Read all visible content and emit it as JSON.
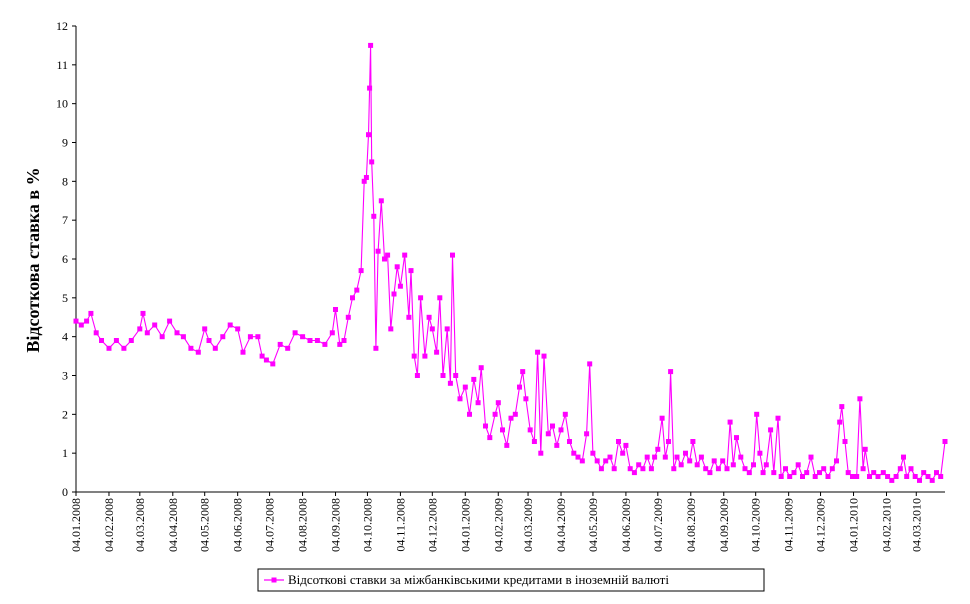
{
  "chart_data": {
    "type": "line",
    "title": "",
    "xlabel": "",
    "ylabel": "Відсоткова ставка в %",
    "ylim": [
      0,
      12
    ],
    "yticks": [
      "0",
      "1",
      "2",
      "3",
      "4",
      "5",
      "6",
      "7",
      "8",
      "9",
      "10",
      "11",
      "12"
    ],
    "grid": false,
    "legend_position": "bottom-center",
    "x_start": "2008-01-04",
    "x_end": "2010-03-31",
    "xticks": [
      "04.01.2008",
      "04.02.2008",
      "04.03.2008",
      "04.04.2008",
      "04.05.2008",
      "04.06.2008",
      "04.07.2008",
      "04.08.2008",
      "04.09.2008",
      "04.10.2008",
      "04.11.2008",
      "04.12.2008",
      "04.01.2009",
      "04.02.2009",
      "04.03.2009",
      "04.04.2009",
      "04.05.2009",
      "04.06.2009",
      "04.07.2009",
      "04.08.2009",
      "04.09.2009",
      "04.10.2009",
      "04.11.2009",
      "04.12.2009",
      "04.01.2010",
      "04.02.2010",
      "04.03.2010"
    ],
    "series": [
      {
        "name": "Відсоткові ставки за міжбанківськими кредитами в іноземній валюті",
        "color": "#FF00FF",
        "marker": "square",
        "points": [
          [
            "2008-01-04",
            4.4
          ],
          [
            "2008-01-09",
            4.3
          ],
          [
            "2008-01-14",
            4.4
          ],
          [
            "2008-01-18",
            4.6
          ],
          [
            "2008-01-23",
            4.1
          ],
          [
            "2008-01-28",
            3.9
          ],
          [
            "2008-02-04",
            3.7
          ],
          [
            "2008-02-11",
            3.9
          ],
          [
            "2008-02-18",
            3.7
          ],
          [
            "2008-02-25",
            3.9
          ],
          [
            "2008-03-04",
            4.2
          ],
          [
            "2008-03-07",
            4.6
          ],
          [
            "2008-03-11",
            4.1
          ],
          [
            "2008-03-18",
            4.3
          ],
          [
            "2008-03-25",
            4.0
          ],
          [
            "2008-04-01",
            4.4
          ],
          [
            "2008-04-08",
            4.1
          ],
          [
            "2008-04-14",
            4.0
          ],
          [
            "2008-04-21",
            3.7
          ],
          [
            "2008-04-28",
            3.6
          ],
          [
            "2008-05-04",
            4.2
          ],
          [
            "2008-05-08",
            3.9
          ],
          [
            "2008-05-14",
            3.7
          ],
          [
            "2008-05-21",
            4.0
          ],
          [
            "2008-05-28",
            4.3
          ],
          [
            "2008-06-04",
            4.2
          ],
          [
            "2008-06-09",
            3.6
          ],
          [
            "2008-06-16",
            4.0
          ],
          [
            "2008-06-23",
            4.0
          ],
          [
            "2008-06-27",
            3.5
          ],
          [
            "2008-07-01",
            3.4
          ],
          [
            "2008-07-07",
            3.3
          ],
          [
            "2008-07-14",
            3.8
          ],
          [
            "2008-07-21",
            3.7
          ],
          [
            "2008-07-28",
            4.1
          ],
          [
            "2008-08-04",
            4.0
          ],
          [
            "2008-08-11",
            3.9
          ],
          [
            "2008-08-18",
            3.9
          ],
          [
            "2008-08-25",
            3.8
          ],
          [
            "2008-09-01",
            4.1
          ],
          [
            "2008-09-04",
            4.7
          ],
          [
            "2008-09-08",
            3.8
          ],
          [
            "2008-09-12",
            3.9
          ],
          [
            "2008-09-16",
            4.5
          ],
          [
            "2008-09-20",
            5.0
          ],
          [
            "2008-09-24",
            5.2
          ],
          [
            "2008-09-28",
            5.7
          ],
          [
            "2008-10-01",
            8.0
          ],
          [
            "2008-10-03",
            8.1
          ],
          [
            "2008-10-05",
            9.2
          ],
          [
            "2008-10-06",
            10.4
          ],
          [
            "2008-10-07",
            11.5
          ],
          [
            "2008-10-08",
            8.5
          ],
          [
            "2008-10-10",
            7.1
          ],
          [
            "2008-10-12",
            3.7
          ],
          [
            "2008-10-14",
            6.2
          ],
          [
            "2008-10-17",
            7.5
          ],
          [
            "2008-10-20",
            6.0
          ],
          [
            "2008-10-23",
            6.1
          ],
          [
            "2008-10-26",
            4.2
          ],
          [
            "2008-10-29",
            5.1
          ],
          [
            "2008-11-01",
            5.8
          ],
          [
            "2008-11-04",
            5.3
          ],
          [
            "2008-11-08",
            6.1
          ],
          [
            "2008-11-12",
            4.5
          ],
          [
            "2008-11-14",
            5.7
          ],
          [
            "2008-11-17",
            3.5
          ],
          [
            "2008-11-20",
            3.0
          ],
          [
            "2008-11-23",
            5.0
          ],
          [
            "2008-11-27",
            3.5
          ],
          [
            "2008-12-01",
            4.5
          ],
          [
            "2008-12-04",
            4.2
          ],
          [
            "2008-12-08",
            3.6
          ],
          [
            "2008-12-11",
            5.0
          ],
          [
            "2008-12-14",
            3.0
          ],
          [
            "2008-12-18",
            4.2
          ],
          [
            "2008-12-21",
            2.8
          ],
          [
            "2008-12-23",
            6.1
          ],
          [
            "2008-12-26",
            3.0
          ],
          [
            "2008-12-30",
            2.4
          ],
          [
            "2009-01-04",
            2.7
          ],
          [
            "2009-01-08",
            2.0
          ],
          [
            "2009-01-12",
            2.9
          ],
          [
            "2009-01-16",
            2.3
          ],
          [
            "2009-01-19",
            3.2
          ],
          [
            "2009-01-23",
            1.7
          ],
          [
            "2009-01-27",
            1.4
          ],
          [
            "2009-02-01",
            2.0
          ],
          [
            "2009-02-04",
            2.3
          ],
          [
            "2009-02-08",
            1.6
          ],
          [
            "2009-02-12",
            1.2
          ],
          [
            "2009-02-16",
            1.9
          ],
          [
            "2009-02-20",
            2.0
          ],
          [
            "2009-02-24",
            2.7
          ],
          [
            "2009-02-27",
            3.1
          ],
          [
            "2009-03-02",
            2.4
          ],
          [
            "2009-03-06",
            1.6
          ],
          [
            "2009-03-10",
            1.3
          ],
          [
            "2009-03-13",
            3.6
          ],
          [
            "2009-03-16",
            1.0
          ],
          [
            "2009-03-19",
            3.5
          ],
          [
            "2009-03-23",
            1.5
          ],
          [
            "2009-03-27",
            1.7
          ],
          [
            "2009-03-31",
            1.2
          ],
          [
            "2009-04-04",
            1.6
          ],
          [
            "2009-04-08",
            2.0
          ],
          [
            "2009-04-12",
            1.3
          ],
          [
            "2009-04-16",
            1.0
          ],
          [
            "2009-04-20",
            0.9
          ],
          [
            "2009-04-24",
            0.8
          ],
          [
            "2009-04-28",
            1.5
          ],
          [
            "2009-05-01",
            3.3
          ],
          [
            "2009-05-04",
            1.0
          ],
          [
            "2009-05-08",
            0.8
          ],
          [
            "2009-05-12",
            0.6
          ],
          [
            "2009-05-16",
            0.8
          ],
          [
            "2009-05-20",
            0.9
          ],
          [
            "2009-05-24",
            0.6
          ],
          [
            "2009-05-28",
            1.3
          ],
          [
            "2009-06-01",
            1.0
          ],
          [
            "2009-06-04",
            1.2
          ],
          [
            "2009-06-08",
            0.6
          ],
          [
            "2009-06-12",
            0.5
          ],
          [
            "2009-06-16",
            0.7
          ],
          [
            "2009-06-20",
            0.6
          ],
          [
            "2009-06-24",
            0.9
          ],
          [
            "2009-06-28",
            0.6
          ],
          [
            "2009-07-01",
            0.9
          ],
          [
            "2009-07-04",
            1.1
          ],
          [
            "2009-07-08",
            1.9
          ],
          [
            "2009-07-11",
            0.9
          ],
          [
            "2009-07-14",
            1.3
          ],
          [
            "2009-07-16",
            3.1
          ],
          [
            "2009-07-19",
            0.6
          ],
          [
            "2009-07-22",
            0.9
          ],
          [
            "2009-07-26",
            0.7
          ],
          [
            "2009-07-30",
            1.0
          ],
          [
            "2009-08-03",
            0.8
          ],
          [
            "2009-08-06",
            1.3
          ],
          [
            "2009-08-10",
            0.7
          ],
          [
            "2009-08-14",
            0.9
          ],
          [
            "2009-08-18",
            0.6
          ],
          [
            "2009-08-22",
            0.5
          ],
          [
            "2009-08-26",
            0.8
          ],
          [
            "2009-08-30",
            0.6
          ],
          [
            "2009-09-03",
            0.8
          ],
          [
            "2009-09-07",
            0.6
          ],
          [
            "2009-09-10",
            1.8
          ],
          [
            "2009-09-13",
            0.7
          ],
          [
            "2009-09-16",
            1.4
          ],
          [
            "2009-09-20",
            0.9
          ],
          [
            "2009-09-24",
            0.6
          ],
          [
            "2009-09-28",
            0.5
          ],
          [
            "2009-10-02",
            0.7
          ],
          [
            "2009-10-05",
            2.0
          ],
          [
            "2009-10-08",
            1.0
          ],
          [
            "2009-10-11",
            0.5
          ],
          [
            "2009-10-14",
            0.7
          ],
          [
            "2009-10-18",
            1.6
          ],
          [
            "2009-10-21",
            0.5
          ],
          [
            "2009-10-25",
            1.9
          ],
          [
            "2009-10-28",
            0.4
          ],
          [
            "2009-11-01",
            0.6
          ],
          [
            "2009-11-05",
            0.4
          ],
          [
            "2009-11-09",
            0.5
          ],
          [
            "2009-11-13",
            0.7
          ],
          [
            "2009-11-17",
            0.4
          ],
          [
            "2009-11-21",
            0.5
          ],
          [
            "2009-11-25",
            0.9
          ],
          [
            "2009-11-29",
            0.4
          ],
          [
            "2009-12-03",
            0.5
          ],
          [
            "2009-12-07",
            0.6
          ],
          [
            "2009-12-11",
            0.4
          ],
          [
            "2009-12-15",
            0.6
          ],
          [
            "2009-12-19",
            0.8
          ],
          [
            "2009-12-22",
            1.8
          ],
          [
            "2009-12-24",
            2.2
          ],
          [
            "2009-12-27",
            1.3
          ],
          [
            "2009-12-30",
            0.5
          ],
          [
            "2010-01-03",
            0.4
          ],
          [
            "2010-01-07",
            0.4
          ],
          [
            "2010-01-10",
            2.4
          ],
          [
            "2010-01-13",
            0.6
          ],
          [
            "2010-01-15",
            1.1
          ],
          [
            "2010-01-19",
            0.4
          ],
          [
            "2010-01-23",
            0.5
          ],
          [
            "2010-01-27",
            0.4
          ],
          [
            "2010-02-01",
            0.5
          ],
          [
            "2010-02-05",
            0.4
          ],
          [
            "2010-02-09",
            0.3
          ],
          [
            "2010-02-13",
            0.4
          ],
          [
            "2010-02-17",
            0.6
          ],
          [
            "2010-02-20",
            0.9
          ],
          [
            "2010-02-23",
            0.4
          ],
          [
            "2010-02-27",
            0.6
          ],
          [
            "2010-03-03",
            0.4
          ],
          [
            "2010-03-07",
            0.3
          ],
          [
            "2010-03-11",
            0.5
          ],
          [
            "2010-03-15",
            0.4
          ],
          [
            "2010-03-19",
            0.3
          ],
          [
            "2010-03-23",
            0.5
          ],
          [
            "2010-03-27",
            0.4
          ],
          [
            "2010-03-31",
            1.3
          ]
        ]
      }
    ]
  }
}
